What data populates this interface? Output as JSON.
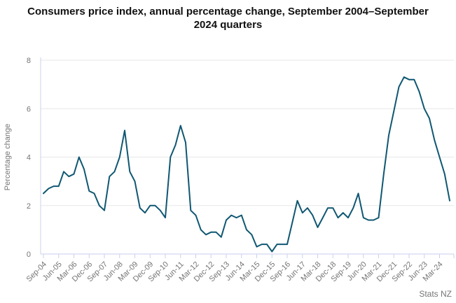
{
  "header": {
    "title": "Consumers price index, annual percentage change, September 2004–September 2024 quarters"
  },
  "footer": {
    "source": "Stats NZ"
  },
  "colors": {
    "line": "#0f5772",
    "grid": "#e7e7e7",
    "axis": "#c9d2ec",
    "tick_label": "#757575",
    "title_text": "#111111"
  },
  "chart_data": {
    "type": "line",
    "title": "Consumers price index, annual percentage change, September 2004–September 2024 quarters",
    "xlabel": "",
    "ylabel": "Percentage change",
    "ylim": [
      0,
      8
    ],
    "yticks": [
      0,
      2,
      4,
      6,
      8
    ],
    "grid": "horizontal",
    "legend": "none",
    "x_label_every": 3,
    "x_tick_labels": [
      "Sep-04",
      "Jun-05",
      "Mar-06",
      "Dec-06",
      "Sep-07",
      "Jun-08",
      "Mar-09",
      "Dec-09",
      "Sep-10",
      "Jun-11",
      "Mar-12",
      "Dec-12",
      "Sep-13",
      "Jun-14",
      "Mar-15",
      "Dec-15",
      "Sep-16",
      "Jun-17",
      "Mar-18",
      "Dec-18",
      "Sep-19",
      "Jun-20",
      "Mar-21",
      "Dec-21",
      "Sep-22",
      "Jun-23",
      "Mar-24"
    ],
    "x": [
      "Sep-04",
      "Dec-04",
      "Mar-05",
      "Jun-05",
      "Sep-05",
      "Dec-05",
      "Mar-06",
      "Jun-06",
      "Sep-06",
      "Dec-06",
      "Mar-07",
      "Jun-07",
      "Sep-07",
      "Dec-07",
      "Mar-08",
      "Jun-08",
      "Sep-08",
      "Dec-08",
      "Mar-09",
      "Jun-09",
      "Sep-09",
      "Dec-09",
      "Mar-10",
      "Jun-10",
      "Sep-10",
      "Dec-10",
      "Mar-11",
      "Jun-11",
      "Sep-11",
      "Dec-11",
      "Mar-12",
      "Jun-12",
      "Sep-12",
      "Dec-12",
      "Mar-13",
      "Jun-13",
      "Sep-13",
      "Dec-13",
      "Mar-14",
      "Jun-14",
      "Sep-14",
      "Dec-14",
      "Mar-15",
      "Jun-15",
      "Sep-15",
      "Dec-15",
      "Mar-16",
      "Jun-16",
      "Sep-16",
      "Dec-16",
      "Mar-17",
      "Jun-17",
      "Sep-17",
      "Dec-17",
      "Mar-18",
      "Jun-18",
      "Sep-18",
      "Dec-18",
      "Mar-19",
      "Jun-19",
      "Sep-19",
      "Dec-19",
      "Mar-20",
      "Jun-20",
      "Sep-20",
      "Dec-20",
      "Mar-21",
      "Jun-21",
      "Sep-21",
      "Dec-21",
      "Mar-22",
      "Jun-22",
      "Sep-22",
      "Dec-22",
      "Mar-23",
      "Jun-23",
      "Sep-23",
      "Dec-23",
      "Mar-24",
      "Jun-24",
      "Sep-24"
    ],
    "series": [
      {
        "name": "CPI annual percentage change",
        "values": [
          2.5,
          2.7,
          2.8,
          2.8,
          3.4,
          3.2,
          3.3,
          4.0,
          3.5,
          2.6,
          2.5,
          2.0,
          1.8,
          3.2,
          3.4,
          4.0,
          5.1,
          3.4,
          3.0,
          1.9,
          1.7,
          2.0,
          2.0,
          1.8,
          1.5,
          4.0,
          4.5,
          5.3,
          4.6,
          1.8,
          1.6,
          1.0,
          0.8,
          0.9,
          0.9,
          0.7,
          1.4,
          1.6,
          1.5,
          1.6,
          1.0,
          0.8,
          0.3,
          0.4,
          0.4,
          0.1,
          0.4,
          0.4,
          0.4,
          1.3,
          2.2,
          1.7,
          1.9,
          1.6,
          1.1,
          1.5,
          1.9,
          1.9,
          1.5,
          1.7,
          1.5,
          1.9,
          2.5,
          1.5,
          1.4,
          1.4,
          1.5,
          3.3,
          4.9,
          5.9,
          6.9,
          7.3,
          7.2,
          7.2,
          6.7,
          6.0,
          5.6,
          4.7,
          4.0,
          3.3,
          2.2
        ]
      }
    ]
  }
}
